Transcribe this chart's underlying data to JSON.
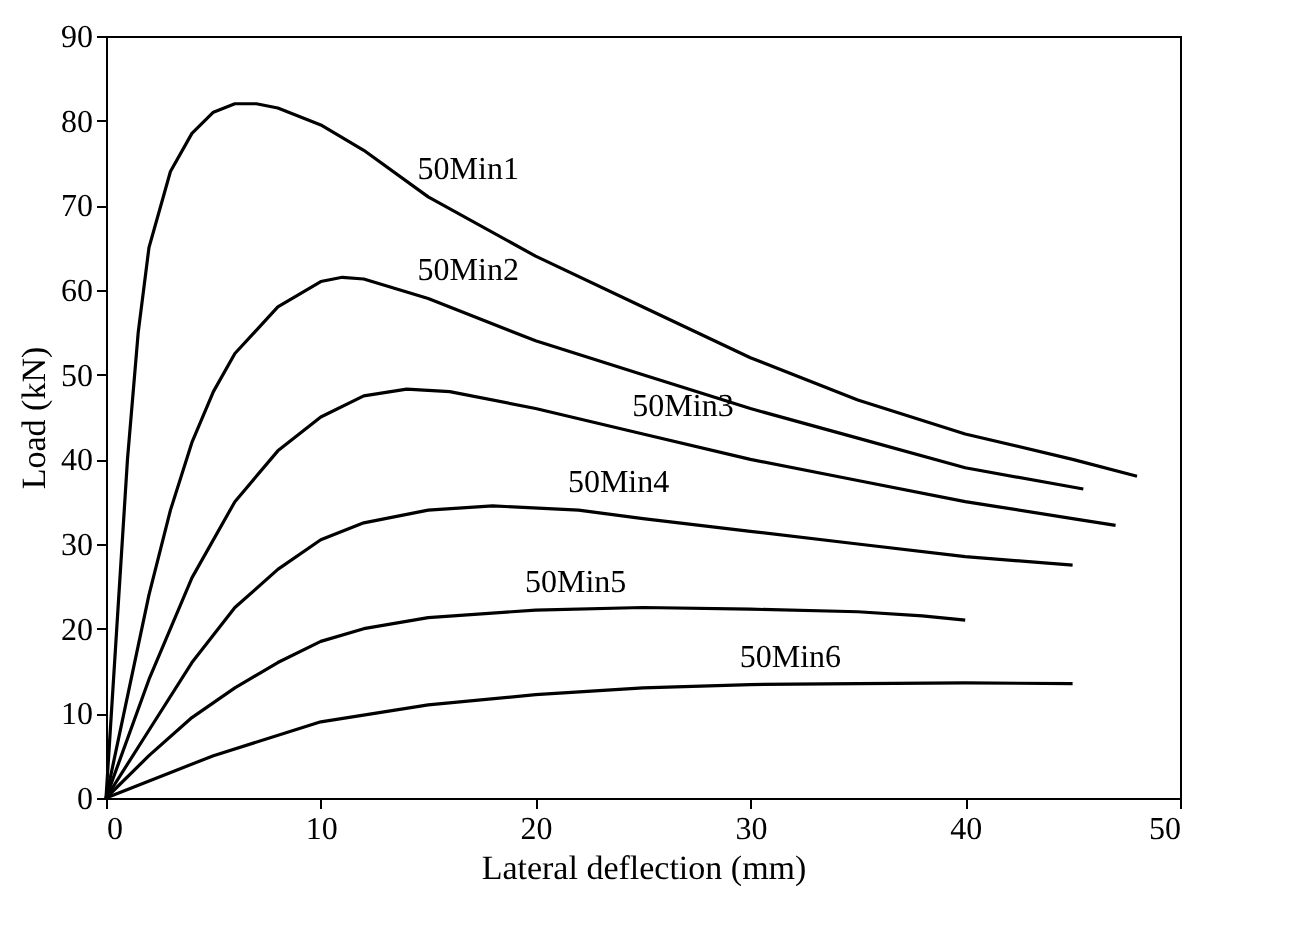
{
  "chart_data": {
    "type": "line",
    "xlabel": "Lateral deflection (mm)",
    "ylabel": "Load (kN)",
    "xlim": [
      0,
      50
    ],
    "xticks": [
      0,
      10,
      20,
      30,
      40,
      50
    ],
    "ylim": [
      0,
      90
    ],
    "yticks": [
      0,
      10,
      20,
      30,
      40,
      50,
      60,
      70,
      80,
      90
    ],
    "grid": false,
    "marker": "none",
    "line_style": "solid",
    "series": [
      {
        "name": "50Min1",
        "color": "#000000",
        "x": [
          0,
          0.5,
          1,
          1.5,
          2,
          3,
          4,
          5,
          6,
          7,
          8,
          10,
          12,
          15,
          20,
          25,
          30,
          35,
          40,
          45,
          48
        ],
        "values": [
          0,
          20,
          40,
          55,
          65,
          74,
          78.5,
          81,
          82,
          82,
          81.5,
          79.5,
          76.5,
          71,
          64,
          58,
          52,
          47,
          43,
          40,
          38
        ]
      },
      {
        "name": "50Min2",
        "color": "#000000",
        "x": [
          0,
          1,
          2,
          3,
          4,
          5,
          6,
          8,
          10,
          11,
          12,
          15,
          20,
          25,
          30,
          35,
          40,
          45.5
        ],
        "values": [
          0,
          12,
          24,
          34,
          42,
          48,
          52.5,
          58,
          61,
          61.5,
          61.3,
          59,
          54,
          50,
          46,
          42.5,
          39,
          36.5
        ]
      },
      {
        "name": "50Min3",
        "color": "#000000",
        "x": [
          0,
          2,
          4,
          6,
          8,
          10,
          12,
          14,
          16,
          20,
          25,
          30,
          35,
          40,
          45,
          47
        ],
        "values": [
          0,
          14,
          26,
          35,
          41,
          45,
          47.5,
          48.3,
          48,
          46,
          43,
          40,
          37.5,
          35,
          33,
          32.2
        ]
      },
      {
        "name": "50Min4",
        "color": "#000000",
        "x": [
          0,
          2,
          4,
          6,
          8,
          10,
          12,
          15,
          18,
          22,
          25,
          30,
          35,
          40,
          45
        ],
        "values": [
          0,
          8,
          16,
          22.5,
          27,
          30.5,
          32.5,
          34,
          34.5,
          34,
          33,
          31.5,
          30,
          28.5,
          27.5
        ]
      },
      {
        "name": "50Min5",
        "color": "#000000",
        "x": [
          0,
          2,
          4,
          6,
          8,
          10,
          12,
          15,
          20,
          25,
          30,
          35,
          38,
          40
        ],
        "values": [
          0,
          5,
          9.5,
          13,
          16,
          18.5,
          20,
          21.3,
          22.2,
          22.5,
          22.3,
          22,
          21.5,
          21
        ]
      },
      {
        "name": "50Min6",
        "color": "#000000",
        "x": [
          0,
          5,
          10,
          15,
          20,
          25,
          30,
          35,
          40,
          45
        ],
        "values": [
          0,
          5,
          9,
          11,
          12.2,
          13,
          13.4,
          13.5,
          13.6,
          13.5
        ]
      }
    ]
  }
}
